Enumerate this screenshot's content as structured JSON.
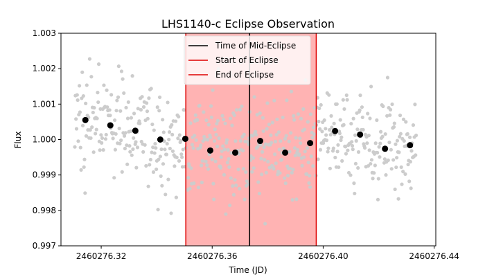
{
  "chart_data": {
    "type": "scatter",
    "title": "LHS1140-c Eclipse Observation",
    "xlabel": "Time (JD)",
    "ylabel": "Flux",
    "xlim": [
      2460276.3055,
      2460276.4406
    ],
    "ylim": [
      0.997,
      1.003
    ],
    "x_ticks": [
      2460276.32,
      2460276.36,
      2460276.4,
      2460276.44
    ],
    "x_tick_labels": [
      "2460276.32",
      "2460276.36",
      "2460276.40",
      "2460276.44"
    ],
    "y_ticks": [
      0.997,
      0.998,
      0.999,
      1.0,
      1.001,
      1.002,
      1.003
    ],
    "y_tick_labels": [
      "0.997",
      "0.998",
      "0.999",
      "1.000",
      "1.001",
      "1.002",
      "1.003"
    ],
    "grid": false,
    "legend_position": "top-center",
    "colors": {
      "raw": "#cccccc",
      "binned": "#000000",
      "shade": "#ffb3b3",
      "mid_line": "#000000",
      "edge_line": "#dd0000"
    },
    "eclipse": {
      "start": 2460276.3505,
      "mid": 2460276.3735,
      "end": 2460276.3975
    },
    "legend": [
      {
        "label": "Time of Mid-Eclipse",
        "color": "#000000"
      },
      {
        "label": "Start of Eclipse",
        "color": "#dd0000"
      },
      {
        "label": "End of Eclipse",
        "color": "#dd0000"
      }
    ],
    "binned": {
      "x": [
        2460276.3143,
        2460276.3233,
        2460276.3323,
        2460276.3413,
        2460276.3503,
        2460276.3593,
        2460276.3683,
        2460276.3773,
        2460276.3863,
        2460276.3953,
        2460276.4043,
        2460276.4133,
        2460276.4223,
        2460276.4313
      ],
      "y": [
        1.00055,
        1.0004,
        1.00025,
        1.0,
        1.00002,
        0.99969,
        0.99963,
        0.99996,
        0.99963,
        0.9999,
        1.00024,
        1.00014,
        0.99974,
        0.99984
      ]
    },
    "raw_points": {
      "x_start": 2460276.3105,
      "x_end": 2460276.4335,
      "count": 600,
      "scatter_amplitude": 0.0007
    }
  }
}
